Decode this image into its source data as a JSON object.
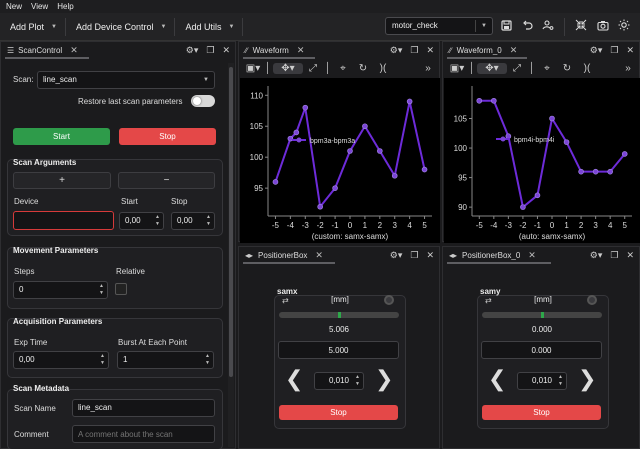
{
  "menu": [
    "New",
    "View",
    "Help"
  ],
  "toolbar": {
    "add_plot": "Add Plot",
    "add_device_control": "Add Device Control",
    "add_utils": "Add Utils",
    "profile_value": "motor_check"
  },
  "scan_control": {
    "title": "ScanControl",
    "scan_label": "Scan:",
    "scan_value": "line_scan",
    "restore_label": "Restore last scan parameters",
    "restore_on": false,
    "start_button": "Start",
    "stop_button": "Stop",
    "scan_args_title": "Scan Arguments",
    "add_row": "+",
    "remove_row": "−",
    "col_device": "Device",
    "col_start": "Start",
    "col_stop": "Stop",
    "device_value": "",
    "start_value": "0,00",
    "stop_value": "0,00",
    "movement_title": "Movement Parameters",
    "steps_label": "Steps",
    "steps_value": "0",
    "relative_label": "Relative",
    "relative_checked": false,
    "acq_title": "Acquisition Parameters",
    "exp_time_label": "Exp Time",
    "exp_time_value": "0,00",
    "burst_label": "Burst At Each Point",
    "burst_value": "1",
    "metadata_title": "Scan Metadata",
    "scan_name_label": "Scan Name",
    "scan_name_value": "line_scan",
    "comment_label": "Comment",
    "comment_placeholder": "A comment about the scan"
  },
  "waveform": {
    "title": "Waveform",
    "legend": "bpm3a-bpm3a",
    "xlabel": "(custom: samx-samx)"
  },
  "waveform_0": {
    "title": "Waveform_0",
    "legend": "bpm4i-bpm4i",
    "xlabel": "(auto: samx-samx)"
  },
  "chart_data": [
    {
      "type": "line",
      "series": [
        {
          "name": "bpm3a-bpm3a",
          "x": [
            -5,
            -4,
            -3.6,
            -3,
            -2,
            -1,
            0,
            1,
            2,
            3,
            4,
            5
          ],
          "values": [
            96,
            103,
            104,
            108,
            92,
            95,
            101,
            105,
            101,
            97,
            109,
            98
          ]
        }
      ],
      "xlabel": "(custom: samx-samx)",
      "ylabel": "",
      "xticks": [
        -5,
        -4,
        -3,
        -2,
        -1,
        0,
        1,
        2,
        3,
        4,
        5
      ],
      "yticks": [
        95,
        100,
        105,
        110
      ],
      "xlim": [
        -5.5,
        5.5
      ],
      "ylim": [
        90.5,
        111.5
      ],
      "line_color": "#6d2bd9"
    },
    {
      "type": "line",
      "series": [
        {
          "name": "bpm4i-bpm4i",
          "x": [
            -5,
            -4,
            -3,
            -2,
            -1,
            0,
            1,
            2,
            3,
            4,
            5
          ],
          "values": [
            108,
            108,
            102,
            90,
            92,
            105,
            101,
            96,
            96,
            96,
            99
          ]
        }
      ],
      "xlabel": "(auto: samx-samx)",
      "ylabel": "",
      "xticks": [
        -5,
        -4,
        -3,
        -2,
        -1,
        0,
        1,
        2,
        3,
        4,
        5
      ],
      "yticks": [
        90,
        95,
        100,
        105
      ],
      "xlim": [
        -5.5,
        5.5
      ],
      "ylim": [
        88.5,
        110.5
      ],
      "line_color": "#6d2bd9"
    }
  ],
  "positioner_box": {
    "title": "PositionerBox",
    "device": "samx",
    "unit": "[mm]",
    "readback": "5.006",
    "setpoint": "5.000",
    "step": "0,010",
    "stop": "Stop",
    "tracker_level": 0.5
  },
  "positioner_box_0": {
    "title": "PositionerBox_0",
    "device": "samy",
    "unit": "[mm]",
    "readback": "0.000",
    "setpoint": "0.000",
    "step": "0,010",
    "stop": "Stop",
    "tracker_level": 0.5
  },
  "colors": {
    "start_green": "#2e9b4a",
    "stop_red": "#e44848",
    "series_purple": "#6d2bd9",
    "invalid_border": "#d63a3a",
    "tracker_green": "#2ea84a"
  }
}
